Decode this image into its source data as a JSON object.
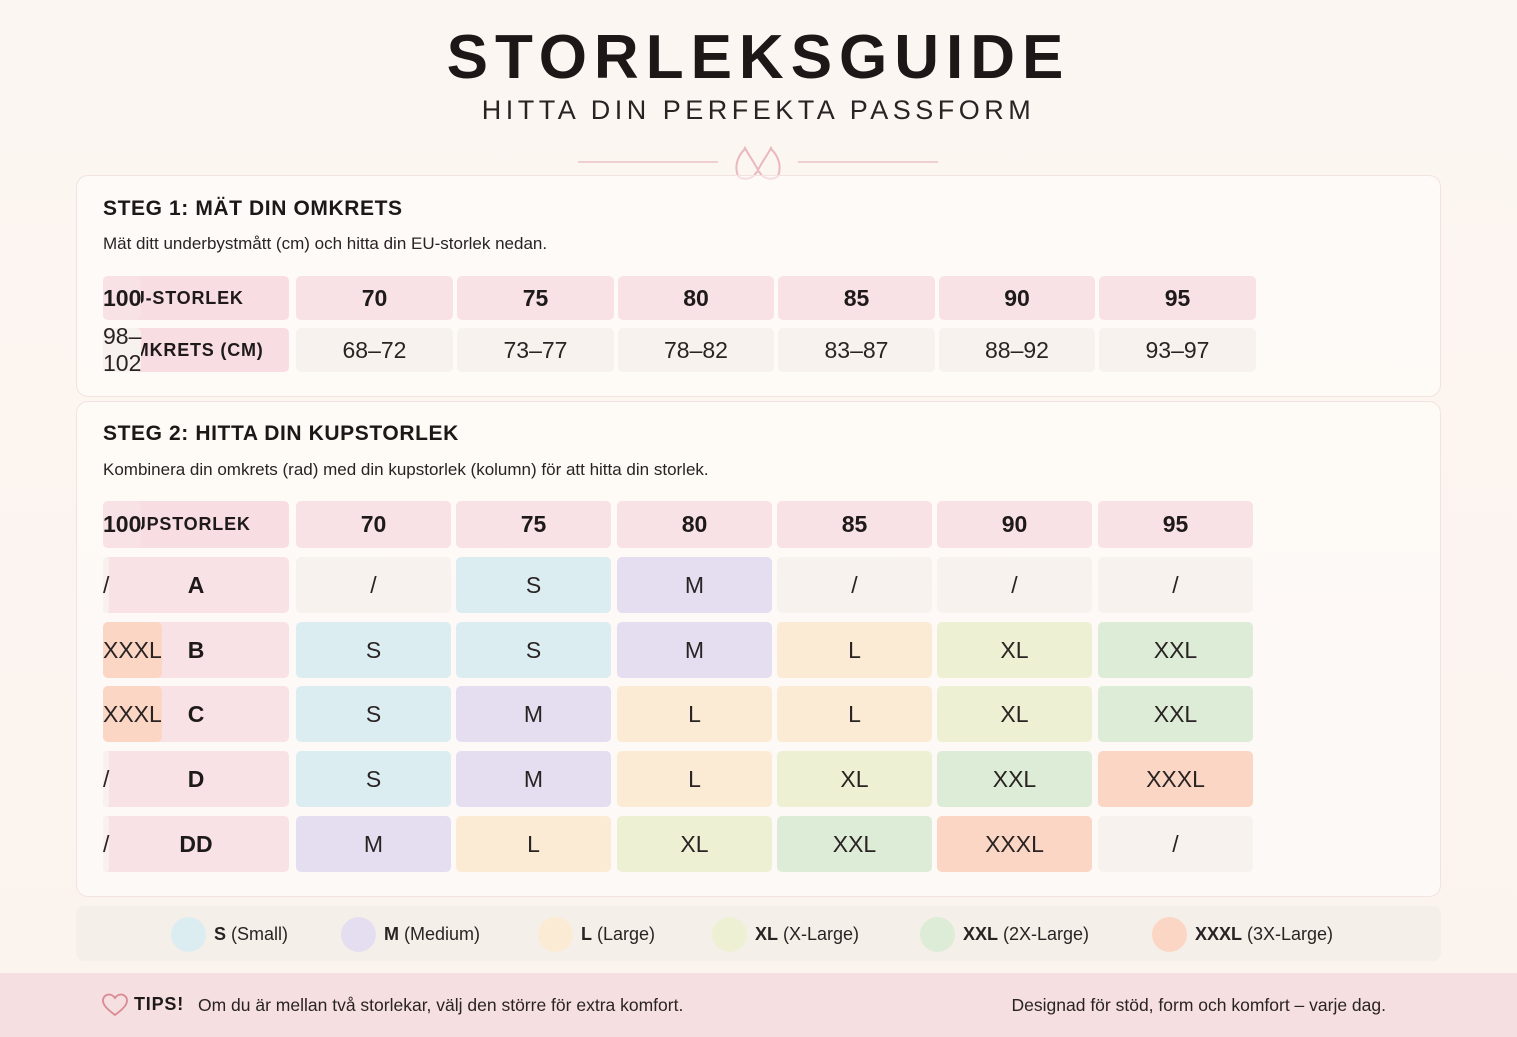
{
  "header": {
    "title": "STORLEKSGUIDE",
    "subtitle": "HITTA DIN PERFEKTA PASSFORM",
    "ornament_icon": "bra-icon"
  },
  "step1": {
    "heading": "STEG 1: MÄT DIN OMKRETS",
    "description": "Mät ditt underbystmått (cm) och hitta din EU-storlek nedan.",
    "row_labels": [
      "EU-STORLEK",
      "OMKRETS (CM)"
    ],
    "eu_sizes": [
      "70",
      "75",
      "80",
      "85",
      "90",
      "95",
      "100"
    ],
    "circumference": [
      "68–72",
      "73–77",
      "78–82",
      "83–87",
      "88–92",
      "93–97",
      "98–102"
    ]
  },
  "step2": {
    "heading": "STEG 2: HITTA DIN KUPSTORLEK",
    "description": "Kombinera din omkrets (rad) med din kupstorlek (kolumn) för att hitta din storlek.",
    "corner_label": "KUPSTORLEK",
    "columns": [
      "70",
      "75",
      "80",
      "85",
      "90",
      "95",
      "100"
    ],
    "rows": [
      {
        "cup": "A",
        "cells": [
          "/",
          "S",
          "M",
          "/",
          "/",
          "/",
          "/"
        ]
      },
      {
        "cup": "B",
        "cells": [
          "S",
          "S",
          "M",
          "L",
          "XL",
          "XXL",
          "XXXL"
        ]
      },
      {
        "cup": "C",
        "cells": [
          "S",
          "M",
          "L",
          "L",
          "XL",
          "XXL",
          "XXXL"
        ]
      },
      {
        "cup": "D",
        "cells": [
          "S",
          "M",
          "L",
          "XL",
          "XXL",
          "XXXL",
          "/"
        ]
      },
      {
        "cup": "DD",
        "cells": [
          "M",
          "L",
          "XL",
          "XXL",
          "XXXL",
          "/",
          "/"
        ]
      }
    ]
  },
  "size_colors": {
    "S": "#dcedf2",
    "M": "#e5def0",
    "L": "#fcebd4",
    "XL": "#edf0d3",
    "XXL": "#dcecd6",
    "XXXL": "#fbd6c4",
    "/": "#f8f2ef"
  },
  "legend": [
    {
      "code": "S",
      "name": "(Small)"
    },
    {
      "code": "M",
      "name": "(Medium)"
    },
    {
      "code": "L",
      "name": "(Large)"
    },
    {
      "code": "XL",
      "name": "(X-Large)"
    },
    {
      "code": "XXL",
      "name": "(2X-Large)"
    },
    {
      "code": "XXXL",
      "name": "(3X-Large)"
    }
  ],
  "footer": {
    "tip_icon": "heart-icon",
    "tip_label": "TIPS!",
    "tip_text": "Om du är mellan två storlekar, välj den större för extra komfort.",
    "slogan": "Designad för stöd, form och komfort – varje dag."
  }
}
